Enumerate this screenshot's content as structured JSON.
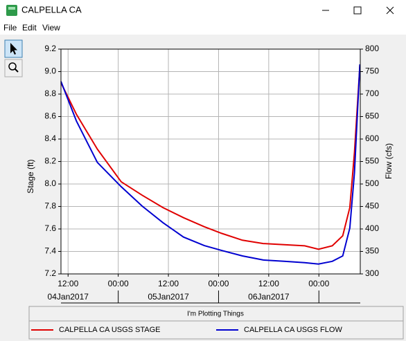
{
  "window": {
    "title": "CALPELLA CA",
    "menu": [
      "File",
      "Edit",
      "View"
    ]
  },
  "chart_data": {
    "type": "line",
    "legend_title": "I'm Plotting Things",
    "ylabel": "Stage (ft)",
    "y2label": "Flow (cfs)",
    "x": [
      10.3,
      14.0,
      19.0,
      24.7,
      29.7,
      34.7,
      39.6,
      44.6,
      48.8,
      53.7,
      58.7,
      63.7,
      68.6,
      71.9,
      75.2,
      77.7,
      79.4,
      80.5,
      81.8
    ],
    "xlim": [
      10.3,
      81.9
    ],
    "xticks": [
      {
        "value": 12,
        "label": "12:00"
      },
      {
        "value": 24,
        "label": "00:00"
      },
      {
        "value": 36,
        "label": "12:00"
      },
      {
        "value": 48,
        "label": "00:00"
      },
      {
        "value": 60,
        "label": "12:00"
      },
      {
        "value": 72,
        "label": "00:00"
      }
    ],
    "xdates": [
      {
        "value": 12,
        "label": "04Jan2017"
      },
      {
        "value": 36,
        "label": "05Jan2017"
      },
      {
        "value": 60,
        "label": "06Jan2017"
      }
    ],
    "ylim": [
      7.2,
      9.2
    ],
    "yticks": [
      {
        "value": 7.2,
        "label": "7.2"
      },
      {
        "value": 7.4,
        "label": "7.4"
      },
      {
        "value": 7.6,
        "label": "7.6"
      },
      {
        "value": 7.8,
        "label": "7.8"
      },
      {
        "value": 8.0,
        "label": "8.0"
      },
      {
        "value": 8.2,
        "label": "8.2"
      },
      {
        "value": 8.4,
        "label": "8.4"
      },
      {
        "value": 8.6,
        "label": "8.6"
      },
      {
        "value": 8.8,
        "label": "8.8"
      },
      {
        "value": 9.0,
        "label": "9.0"
      },
      {
        "value": 9.2,
        "label": "9.2"
      }
    ],
    "y2lim": [
      300,
      800
    ],
    "y2ticks": [
      300,
      350,
      400,
      450,
      500,
      550,
      600,
      650,
      700,
      750,
      800
    ],
    "grid": true,
    "series": [
      {
        "name": "CALPELLA CA USGS STAGE",
        "color": "#e00000",
        "axis": "y",
        "values": [
          8.9,
          8.62,
          8.31,
          8.02,
          7.9,
          7.79,
          7.7,
          7.62,
          7.56,
          7.5,
          7.47,
          7.46,
          7.45,
          7.42,
          7.45,
          7.54,
          7.79,
          8.28,
          9.05
        ]
      },
      {
        "name": "CALPELLA CA USGS FLOW",
        "color": "#0000d0",
        "axis": "y2",
        "values": [
          728,
          640,
          548,
          494,
          451,
          414,
          382,
          363,
          352,
          340,
          331,
          328,
          325,
          322,
          328,
          340,
          402,
          525,
          766
        ]
      }
    ]
  }
}
